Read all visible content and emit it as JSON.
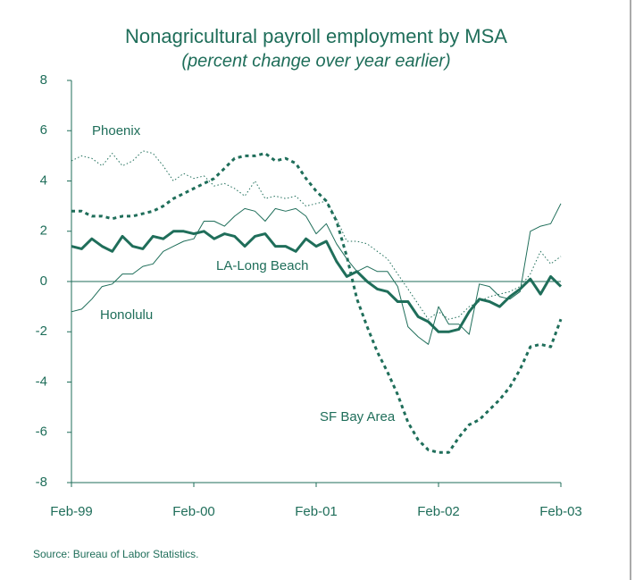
{
  "chart_data": {
    "type": "line",
    "title": "Nonagricultural payroll employment by MSA",
    "subtitle": "(percent change over year earlier)",
    "source": "Source: Bureau of Labor Statistics.",
    "categories": [
      "Feb-99",
      null,
      null,
      null,
      null,
      null,
      null,
      null,
      null,
      null,
      null,
      null,
      "Feb-00",
      null,
      null,
      null,
      null,
      null,
      null,
      null,
      null,
      null,
      null,
      null,
      "Feb-01",
      null,
      null,
      null,
      null,
      null,
      null,
      null,
      null,
      null,
      null,
      null,
      "Feb-02",
      null,
      null,
      null,
      null,
      null,
      null,
      null,
      null,
      null,
      null,
      null,
      "Feb-03"
    ],
    "ylim": [
      -8,
      8
    ],
    "yticks": [
      -8,
      -6,
      -4,
      -2,
      0,
      2,
      4,
      6,
      8
    ],
    "grid": false,
    "zero_line": true,
    "series": [
      {
        "name": "Phoenix",
        "color": "#1f6e5a",
        "width": 1,
        "dash": "1.5,2.5",
        "values": [
          4.8,
          5.0,
          4.9,
          4.6,
          5.1,
          4.6,
          4.8,
          5.2,
          5.1,
          4.6,
          4.0,
          4.3,
          4.1,
          4.2,
          3.8,
          3.9,
          3.7,
          3.4,
          4.0,
          3.3,
          3.4,
          3.3,
          3.4,
          3.0,
          3.1,
          3.2,
          2.5,
          1.6,
          1.6,
          1.5,
          1.2,
          0.9,
          0.3,
          -0.3,
          -0.9,
          -1.5,
          -1.2,
          -1.5,
          -1.4,
          -1.0,
          -0.8,
          -0.6,
          -0.5,
          -0.4,
          -0.2,
          0.3,
          1.2,
          0.7,
          1.0
        ]
      },
      {
        "name": "LA-Long Beach",
        "color": "#1f6e5a",
        "width": 3,
        "dash": "none",
        "values": [
          1.4,
          1.3,
          1.7,
          1.4,
          1.2,
          1.8,
          1.4,
          1.3,
          1.8,
          1.7,
          2.0,
          2.0,
          1.9,
          2.0,
          1.7,
          1.9,
          1.8,
          1.4,
          1.8,
          1.9,
          1.4,
          1.4,
          1.2,
          1.7,
          1.4,
          1.6,
          0.8,
          0.2,
          0.4,
          0.0,
          -0.3,
          -0.4,
          -0.8,
          -0.8,
          -1.4,
          -1.6,
          -2.0,
          -2.0,
          -1.9,
          -1.2,
          -0.7,
          -0.8,
          -1.0,
          -0.6,
          -0.3,
          0.1,
          -0.5,
          0.2,
          -0.2
        ]
      },
      {
        "name": "Honolulu",
        "color": "#1f6e5a",
        "width": 1,
        "dash": "none",
        "values": [
          -1.2,
          -1.1,
          -0.7,
          -0.2,
          -0.1,
          0.3,
          0.3,
          0.6,
          0.7,
          1.2,
          1.4,
          1.6,
          1.7,
          2.4,
          2.4,
          2.2,
          2.6,
          2.9,
          2.8,
          2.4,
          2.9,
          2.8,
          2.9,
          2.6,
          1.9,
          2.3,
          1.5,
          0.9,
          0.4,
          0.6,
          0.4,
          0.4,
          -0.2,
          -1.8,
          -2.2,
          -2.5,
          -1.0,
          -1.7,
          -1.7,
          -2.1,
          -0.1,
          -0.2,
          -0.6,
          -0.7,
          -0.4,
          2.0,
          2.2,
          2.3,
          3.1
        ]
      },
      {
        "name": "SF Bay Area",
        "color": "#1f6e5a",
        "width": 3,
        "dash": "4,4",
        "values": [
          2.8,
          2.8,
          2.6,
          2.6,
          2.5,
          2.6,
          2.6,
          2.7,
          2.8,
          3.0,
          3.3,
          3.5,
          3.7,
          3.9,
          4.1,
          4.5,
          4.9,
          5.0,
          5.0,
          5.1,
          4.8,
          4.9,
          4.7,
          4.1,
          3.6,
          3.2,
          2.4,
          1.0,
          -0.7,
          -1.8,
          -2.8,
          -3.6,
          -4.5,
          -5.6,
          -6.3,
          -6.7,
          -6.8,
          -6.8,
          -6.2,
          -5.7,
          -5.5,
          -5.1,
          -4.7,
          -4.2,
          -3.5,
          -2.6,
          -2.5,
          -2.6,
          -1.5
        ]
      }
    ]
  }
}
